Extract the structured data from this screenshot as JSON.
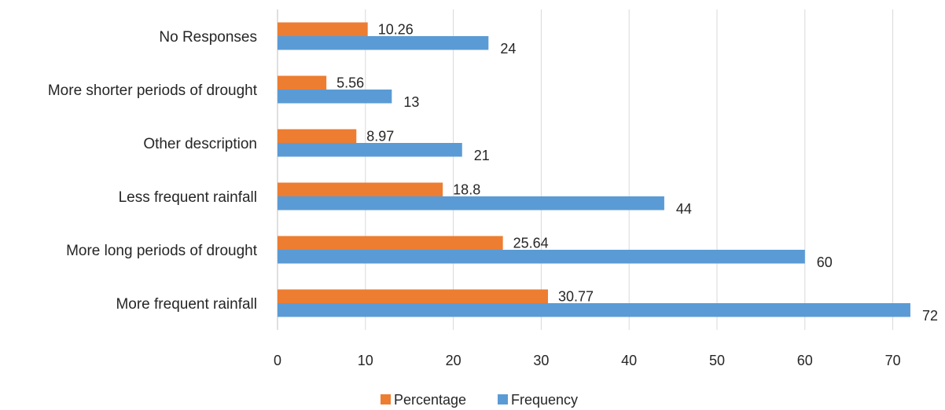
{
  "chart_data": {
    "type": "bar",
    "orientation": "horizontal",
    "title": "",
    "xlabel": "",
    "ylabel": "",
    "categories": [
      "No Responses",
      "More shorter periods of drought",
      "Other description",
      "Less frequent rainfall",
      "More long periods of drought",
      "More frequent rainfall"
    ],
    "series": [
      {
        "name": "Percentage",
        "color": "#ED7D31",
        "values": [
          10.26,
          5.56,
          8.97,
          18.8,
          25.64,
          30.77
        ],
        "labels": [
          "10.26",
          "5.56",
          "8.97",
          "18.8",
          "25.64",
          "30.77"
        ]
      },
      {
        "name": "Frequency",
        "color": "#5B9BD5",
        "values": [
          24,
          13,
          21,
          44,
          60,
          72
        ],
        "labels": [
          "24",
          "13",
          "21",
          "44",
          "60",
          "72"
        ]
      }
    ],
    "xlim": [
      0,
      75
    ],
    "xticks": [
      0,
      10,
      20,
      30,
      40,
      50,
      60,
      70
    ],
    "xtick_labels": [
      "0",
      "10",
      "20",
      "30",
      "40",
      "50",
      "60",
      "70"
    ],
    "grid": true,
    "legend_position": "bottom"
  }
}
